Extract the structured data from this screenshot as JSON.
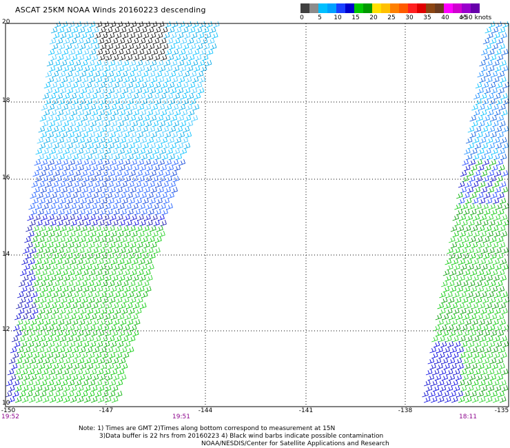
{
  "title": "ASCAT 25KM NOAA Winds 20160223 descending",
  "legend": {
    "colors": [
      "#404040",
      "#8c8c8c",
      "#00bfff",
      "#00a0ff",
      "#1a40ff",
      "#0000cc",
      "#00c800",
      "#009900",
      "#ffe000",
      "#ffc000",
      "#ff8000",
      "#ff5a00",
      "#ff2020",
      "#e00000",
      "#8b4513",
      "#6b3a1f",
      "#ff00ff",
      "#d000d0",
      "#9900cc",
      "#6600aa"
    ],
    "labels": [
      "0",
      "5",
      "10",
      "15",
      "20",
      "25",
      "30",
      "35",
      "40",
      "45",
      ">50 knots"
    ]
  },
  "axes": {
    "lat_labels": [
      "20",
      "18",
      "16",
      "14",
      "12",
      "10"
    ],
    "lon_labels": [
      "-150",
      "-147",
      "-144",
      "-141",
      "-138",
      "-135"
    ]
  },
  "swath_times": [
    "19:52",
    "19:51",
    "18:11"
  ],
  "notes": [
    "Note: 1) Times are GMT 2)Times along bottom correspond to measurement at 15N",
    "3)Data buffer is 22 hrs from 20160223 4) Black wind barbs indicate possible contamination",
    "NOAA/NESDIS/Center for Satellite Applications and Research"
  ]
}
